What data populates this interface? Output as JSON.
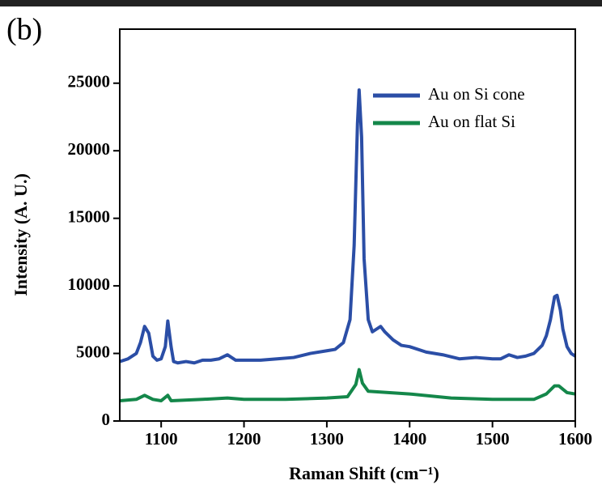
{
  "chart_data": {
    "type": "line",
    "annotation": "(b)",
    "x_label": "Raman Shift (cm⁻¹)",
    "y_label": "Intensity (A. U.)",
    "xlim": [
      1050,
      1600
    ],
    "xticks": [
      1100,
      1200,
      1300,
      1400,
      1500,
      1600
    ],
    "ylim": [
      0,
      29000
    ],
    "yticks": [
      0,
      5000,
      10000,
      15000,
      20000,
      25000
    ],
    "legend": "upper right",
    "series": [
      {
        "name": "Au on Si cone",
        "color": "#2b4ea6",
        "x": [
          1050,
          1060,
          1070,
          1075,
          1080,
          1085,
          1090,
          1095,
          1100,
          1105,
          1108,
          1112,
          1115,
          1120,
          1130,
          1140,
          1150,
          1160,
          1170,
          1180,
          1185,
          1190,
          1200,
          1220,
          1240,
          1260,
          1280,
          1300,
          1310,
          1320,
          1328,
          1333,
          1337,
          1339,
          1342,
          1345,
          1350,
          1355,
          1360,
          1365,
          1370,
          1380,
          1390,
          1400,
          1420,
          1440,
          1460,
          1480,
          1500,
          1510,
          1520,
          1530,
          1540,
          1550,
          1560,
          1565,
          1570,
          1575,
          1578,
          1582,
          1585,
          1590,
          1595,
          1600
        ],
        "values": [
          4400,
          4600,
          5000,
          5800,
          7000,
          6500,
          4800,
          4500,
          4600,
          5500,
          7400,
          5500,
          4400,
          4300,
          4400,
          4300,
          4500,
          4500,
          4600,
          4900,
          4700,
          4500,
          4500,
          4500,
          4600,
          4700,
          5000,
          5200,
          5300,
          5800,
          7500,
          13000,
          22000,
          24500,
          21000,
          12000,
          7500,
          6600,
          6800,
          7000,
          6600,
          6000,
          5600,
          5500,
          5100,
          4900,
          4600,
          4700,
          4600,
          4600,
          4900,
          4700,
          4800,
          5000,
          5600,
          6300,
          7500,
          9200,
          9300,
          8200,
          6800,
          5500,
          5000,
          4800
        ]
      },
      {
        "name": "Au on flat Si",
        "color": "#14874a",
        "x": [
          1050,
          1070,
          1080,
          1090,
          1100,
          1108,
          1112,
          1150,
          1180,
          1200,
          1250,
          1300,
          1325,
          1335,
          1339,
          1343,
          1350,
          1400,
          1450,
          1500,
          1550,
          1565,
          1575,
          1580,
          1590,
          1600
        ],
        "values": [
          1500,
          1600,
          1900,
          1600,
          1500,
          1900,
          1500,
          1600,
          1700,
          1600,
          1600,
          1700,
          1800,
          2700,
          3800,
          2800,
          2200,
          2000,
          1700,
          1600,
          1600,
          2000,
          2600,
          2600,
          2100,
          2000
        ]
      }
    ]
  }
}
